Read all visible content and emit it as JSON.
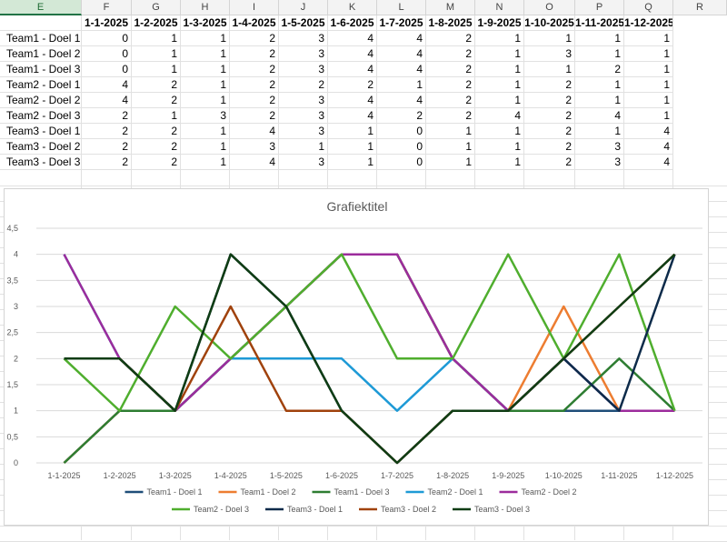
{
  "columns": [
    "E",
    "F",
    "G",
    "H",
    "I",
    "J",
    "K",
    "L",
    "M",
    "N",
    "O",
    "P",
    "Q",
    "R"
  ],
  "header_row": [
    "",
    "1-1-2025",
    "1-2-2025",
    "1-3-2025",
    "1-4-2025",
    "1-5-2025",
    "1-6-2025",
    "1-7-2025",
    "1-8-2025",
    "1-9-2025",
    "1-10-2025",
    "1-11-2025",
    "1-12-2025"
  ],
  "rows": [
    {
      "label": "Team1 - Doel 1",
      "values": [
        0,
        1,
        1,
        2,
        3,
        4,
        4,
        2,
        1,
        1,
        1,
        1
      ]
    },
    {
      "label": "Team1 - Doel 2",
      "values": [
        0,
        1,
        1,
        2,
        3,
        4,
        4,
        2,
        1,
        3,
        1,
        1
      ]
    },
    {
      "label": "Team1 - Doel 3",
      "values": [
        0,
        1,
        1,
        2,
        3,
        4,
        4,
        2,
        1,
        1,
        2,
        1
      ]
    },
    {
      "label": "Team2 - Doel 1",
      "values": [
        4,
        2,
        1,
        2,
        2,
        2,
        1,
        2,
        1,
        2,
        1,
        1
      ]
    },
    {
      "label": "Team2 - Doel 2",
      "values": [
        4,
        2,
        1,
        2,
        3,
        4,
        4,
        2,
        1,
        2,
        1,
        1
      ]
    },
    {
      "label": "Team2 - Doel 3",
      "values": [
        2,
        1,
        3,
        2,
        3,
        4,
        2,
        2,
        4,
        2,
        4,
        1
      ]
    },
    {
      "label": "Team3 - Doel 1",
      "values": [
        2,
        2,
        1,
        4,
        3,
        1,
        0,
        1,
        1,
        2,
        1,
        4
      ]
    },
    {
      "label": "Team3 - Doel 2",
      "values": [
        2,
        2,
        1,
        3,
        1,
        1,
        0,
        1,
        1,
        2,
        3,
        4
      ]
    },
    {
      "label": "Team3 - Doel 3",
      "values": [
        2,
        2,
        1,
        4,
        3,
        1,
        0,
        1,
        1,
        2,
        3,
        4
      ]
    }
  ],
  "chart_data": {
    "type": "line",
    "title": "Grafiektitel",
    "categories": [
      "1-1-2025",
      "1-2-2025",
      "1-3-2025",
      "1-4-2025",
      "1-5-2025",
      "1-6-2025",
      "1-7-2025",
      "1-8-2025",
      "1-9-2025",
      "1-10-2025",
      "1-11-2025",
      "1-12-2025"
    ],
    "ylim": [
      0,
      4.5
    ],
    "yticks": [
      "0",
      "0,5",
      "1",
      "1,5",
      "2",
      "2,5",
      "3",
      "3,5",
      "4",
      "4,5"
    ],
    "grid": true,
    "legend_position": "bottom",
    "series": [
      {
        "name": "Team1 - Doel 1",
        "color": "#1f4e79",
        "values": [
          0,
          1,
          1,
          2,
          3,
          4,
          4,
          2,
          1,
          1,
          1,
          1
        ]
      },
      {
        "name": "Team1 - Doel 2",
        "color": "#ed7d31",
        "values": [
          0,
          1,
          1,
          2,
          3,
          4,
          4,
          2,
          1,
          3,
          1,
          1
        ]
      },
      {
        "name": "Team1 - Doel 3",
        "color": "#2e7d32",
        "values": [
          0,
          1,
          1,
          2,
          3,
          4,
          4,
          2,
          1,
          1,
          2,
          1
        ]
      },
      {
        "name": "Team2 - Doel 1",
        "color": "#1e9ad6",
        "values": [
          4,
          2,
          1,
          2,
          2,
          2,
          1,
          2,
          1,
          2,
          1,
          1
        ]
      },
      {
        "name": "Team2 - Doel 2",
        "color": "#9c2c9c",
        "values": [
          4,
          2,
          1,
          2,
          3,
          4,
          4,
          2,
          1,
          2,
          1,
          1
        ]
      },
      {
        "name": "Team2 - Doel 3",
        "color": "#4fae2e",
        "values": [
          2,
          1,
          3,
          2,
          3,
          4,
          2,
          2,
          4,
          2,
          4,
          1
        ]
      },
      {
        "name": "Team3 - Doel 1",
        "color": "#0d2b4a",
        "values": [
          2,
          2,
          1,
          4,
          3,
          1,
          0,
          1,
          1,
          2,
          1,
          4
        ]
      },
      {
        "name": "Team3 - Doel 2",
        "color": "#a0420c",
        "values": [
          2,
          2,
          1,
          3,
          1,
          1,
          0,
          1,
          1,
          2,
          3,
          4
        ]
      },
      {
        "name": "Team3 - Doel 3",
        "color": "#0f3d14",
        "values": [
          2,
          2,
          1,
          4,
          3,
          1,
          0,
          1,
          1,
          2,
          3,
          4
        ]
      }
    ]
  }
}
